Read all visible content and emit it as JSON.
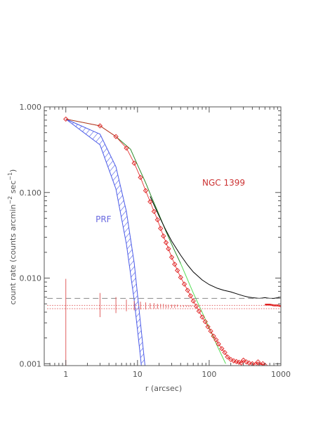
{
  "chart_data": {
    "type": "scatter",
    "xlabel": "r (arcsec)",
    "ylabel": "count rate (counts arcmin",
    "ylabel_sup1": "−2",
    "ylabel_mid": " sec",
    "ylabel_sup2": "−1",
    "ylabel_end": ")",
    "x_scale": "log",
    "y_scale": "log",
    "xlim": [
      0.5,
      1000
    ],
    "ylim": [
      0.00095,
      1.0
    ],
    "x_ticks": [
      1,
      10,
      100,
      1000
    ],
    "x_tick_labels": [
      "1",
      "10",
      "100",
      "1000"
    ],
    "y_ticks": [
      0.001,
      0.01,
      0.1,
      1.0
    ],
    "y_tick_labels": [
      "0.001",
      "0.010",
      "0.100",
      "1.000"
    ],
    "grid": false,
    "legend": "none",
    "annotations": [
      {
        "text": "NGC 1399",
        "x": 80,
        "y": 0.12,
        "color": "#cc3333"
      },
      {
        "text": "PRF",
        "x": 2.6,
        "y": 0.045,
        "color": "#6a6ae0"
      }
    ],
    "series": [
      {
        "style": "hatched-band",
        "color": "#4a5ae8",
        "x": [
          1,
          3,
          5,
          7,
          9,
          11,
          13
        ],
        "upper": [
          0.72,
          0.48,
          0.2,
          0.06,
          0.015,
          0.003,
          0.0008
        ],
        "lower": [
          0.72,
          0.36,
          0.11,
          0.025,
          0.0055,
          0.0012,
          0.0003
        ]
      },
      {
        "style": "line",
        "color": "#2a8a2a",
        "x": [
          1,
          3,
          5,
          8,
          10,
          13,
          16,
          20,
          25,
          32,
          40
        ],
        "y": [
          0.72,
          0.6,
          0.45,
          0.32,
          0.21,
          0.13,
          0.085,
          0.055,
          0.035,
          0.022,
          0.0148
        ]
      },
      {
        "style": "line",
        "color": "#55dd55",
        "x": [
          40,
          60,
          90,
          130,
          170
        ],
        "y": [
          0.0148,
          0.0067,
          0.0032,
          0.0016,
          0.001
        ]
      },
      {
        "style": "line",
        "color": "#000000",
        "x": [
          15,
          20,
          25,
          30,
          40,
          50,
          60,
          80,
          100,
          130,
          160,
          200,
          250,
          300,
          350,
          400,
          500,
          600,
          700,
          800,
          900,
          1000
        ],
        "y": [
          0.09,
          0.053,
          0.036,
          0.027,
          0.0185,
          0.0142,
          0.0118,
          0.0095,
          0.0084,
          0.0076,
          0.0072,
          0.0069,
          0.0065,
          0.0062,
          0.006,
          0.0059,
          0.0058,
          0.0059,
          0.0058,
          0.0058,
          0.0059,
          0.006
        ]
      },
      {
        "style": "diamond-markers",
        "color": "#e02020",
        "x": [
          1,
          3,
          5,
          7,
          9,
          11,
          13,
          15,
          17,
          19,
          21,
          23,
          25,
          27,
          30,
          33,
          36,
          40,
          45,
          50,
          55,
          60,
          66,
          72,
          80,
          88,
          96,
          105,
          115,
          125,
          135,
          150,
          165,
          180,
          200,
          220,
          240,
          260,
          280,
          300,
          330,
          360,
          400,
          440,
          480,
          520,
          560,
          600
        ],
        "y": [
          0.72,
          0.6,
          0.45,
          0.33,
          0.22,
          0.15,
          0.105,
          0.078,
          0.06,
          0.048,
          0.038,
          0.031,
          0.026,
          0.022,
          0.0175,
          0.0145,
          0.0123,
          0.0102,
          0.0085,
          0.0072,
          0.0062,
          0.0054,
          0.0047,
          0.0041,
          0.0035,
          0.0031,
          0.0027,
          0.0024,
          0.0021,
          0.0019,
          0.0017,
          0.0015,
          0.00135,
          0.0012,
          0.00112,
          0.00108,
          0.00106,
          0.00104,
          0.00102,
          0.0011,
          0.00105,
          0.00102,
          0.001,
          0.00098,
          0.00105,
          0.00097,
          0.001,
          0.00096
        ]
      },
      {
        "style": "thick-line",
        "color": "#e02020",
        "x": [
          600,
          700,
          800,
          900,
          1000
        ],
        "y": [
          0.0049,
          0.0049,
          0.0048,
          0.0048,
          0.0047
        ]
      },
      {
        "style": "dashed-line",
        "color": "#888888",
        "x": [
          0.55,
          1000
        ],
        "y": [
          0.0058,
          0.0058
        ]
      },
      {
        "style": "dotted-line",
        "color": "#e06060",
        "x": [
          0.55,
          1000
        ],
        "y": [
          0.0048,
          0.0048
        ]
      },
      {
        "style": "dotted-line",
        "color": "#e06060",
        "x": [
          0.55,
          1000
        ],
        "y": [
          0.0044,
          0.0044
        ]
      },
      {
        "style": "error-bars",
        "color": "#e06060",
        "x": [
          1,
          3,
          5,
          7,
          9,
          11,
          13,
          15,
          17,
          19,
          21,
          23,
          25,
          27,
          30,
          33,
          36,
          40,
          44,
          48,
          52,
          56
        ],
        "center": [
          0.0047,
          0.0047,
          0.0047,
          0.0047,
          0.0047,
          0.0047,
          0.0047,
          0.0047,
          0.0047,
          0.0047,
          0.0047,
          0.0047,
          0.0047,
          0.0047,
          0.0047,
          0.0047,
          0.0047,
          0.0047,
          0.0047,
          0.0047,
          0.0047,
          0.0047
        ],
        "low": [
          0.00095,
          0.0035,
          0.0039,
          0.0041,
          0.0042,
          0.0043,
          0.0043,
          0.0044,
          0.0044,
          0.0044,
          0.0045,
          0.0045,
          0.0045,
          0.0045,
          0.0045,
          0.0045,
          0.0046,
          0.0046,
          0.0046,
          0.0046,
          0.0046,
          0.0046
        ],
        "high": [
          0.0098,
          0.0067,
          0.006,
          0.0056,
          0.0054,
          0.0053,
          0.0052,
          0.0051,
          0.0051,
          0.005,
          0.005,
          0.005,
          0.0049,
          0.0049,
          0.0049,
          0.0049,
          0.0049,
          0.0048,
          0.0048,
          0.0048,
          0.0048,
          0.0048
        ]
      }
    ]
  }
}
